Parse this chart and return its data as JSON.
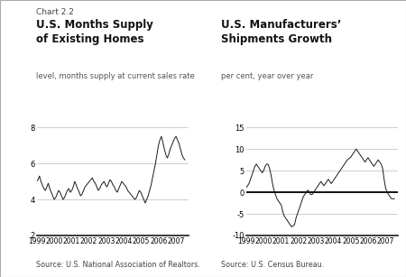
{
  "chart_label": "Chart 2.2",
  "left_title_bold": "U.S. Months Supply\nof Existing Homes",
  "left_subtitle": "level, months supply at current sales rate",
  "left_source": "Source: U.S. National Association of Realtors.",
  "left_ylim": [
    2,
    8
  ],
  "left_yticks": [
    2,
    4,
    6,
    8
  ],
  "right_title_bold": "U.S. Manufacturers’\nShipments Growth",
  "right_subtitle": "per cent, year over year",
  "right_source": "Source: U.S. Census Bureau.",
  "right_ylim": [
    -10,
    15
  ],
  "right_yticks": [
    -10,
    -5,
    0,
    5,
    10,
    15
  ],
  "xtick_labels": [
    "1999",
    "2000",
    "2001",
    "2002",
    "2003",
    "2004",
    "2005",
    "2006",
    "2007"
  ],
  "bg_color": "#ffffff",
  "line_color": "#1a1a1a",
  "grid_color": "#bbbbbb",
  "zero_line_color": "#000000",
  "left_data": [
    5.0,
    5.1,
    5.3,
    5.0,
    4.8,
    4.6,
    4.5,
    4.7,
    4.9,
    4.6,
    4.4,
    4.2,
    4.0,
    4.1,
    4.3,
    4.5,
    4.4,
    4.2,
    4.0,
    4.1,
    4.3,
    4.5,
    4.6,
    4.4,
    4.5,
    4.7,
    5.0,
    4.8,
    4.6,
    4.4,
    4.2,
    4.3,
    4.5,
    4.7,
    4.8,
    4.9,
    5.0,
    5.1,
    5.2,
    5.0,
    4.9,
    4.7,
    4.5,
    4.6,
    4.8,
    4.9,
    5.0,
    4.8,
    4.7,
    4.9,
    5.1,
    5.0,
    4.8,
    4.7,
    4.5,
    4.4,
    4.6,
    4.8,
    5.0,
    4.9,
    4.8,
    4.7,
    4.5,
    4.4,
    4.3,
    4.2,
    4.1,
    4.0,
    4.1,
    4.3,
    4.5,
    4.4,
    4.2,
    4.0,
    3.8,
    4.0,
    4.2,
    4.5,
    4.8,
    5.2,
    5.6,
    6.0,
    6.5,
    7.0,
    7.3,
    7.5,
    7.2,
    6.8,
    6.5,
    6.3,
    6.5,
    6.8,
    7.0,
    7.2,
    7.4,
    7.5,
    7.3,
    7.1,
    6.8,
    6.5,
    6.3,
    6.2
  ],
  "right_data": [
    1.0,
    1.5,
    2.0,
    3.0,
    4.0,
    5.0,
    6.0,
    6.5,
    6.0,
    5.5,
    5.0,
    4.5,
    5.0,
    6.0,
    6.5,
    6.5,
    5.5,
    4.0,
    2.0,
    0.5,
    -0.5,
    -1.5,
    -2.0,
    -2.5,
    -3.0,
    -4.5,
    -5.5,
    -6.0,
    -6.5,
    -7.0,
    -7.5,
    -8.0,
    -7.8,
    -7.5,
    -6.0,
    -5.0,
    -4.0,
    -3.0,
    -2.0,
    -1.0,
    -0.5,
    0.0,
    0.5,
    0.0,
    -0.5,
    -0.5,
    0.0,
    0.5,
    1.0,
    1.5,
    2.0,
    2.5,
    2.0,
    1.5,
    2.0,
    2.5,
    3.0,
    2.5,
    2.0,
    2.5,
    3.0,
    3.5,
    4.0,
    4.5,
    5.0,
    5.5,
    6.0,
    6.5,
    7.0,
    7.5,
    7.8,
    8.0,
    8.5,
    9.0,
    9.5,
    10.0,
    9.5,
    9.0,
    8.5,
    8.0,
    7.5,
    7.0,
    7.5,
    8.0,
    7.5,
    7.0,
    6.5,
    6.0,
    6.5,
    7.0,
    7.5,
    7.0,
    6.5,
    5.5,
    3.0,
    1.0,
    0.0,
    -0.5,
    -1.0,
    -1.5,
    -1.5,
    -1.5
  ]
}
